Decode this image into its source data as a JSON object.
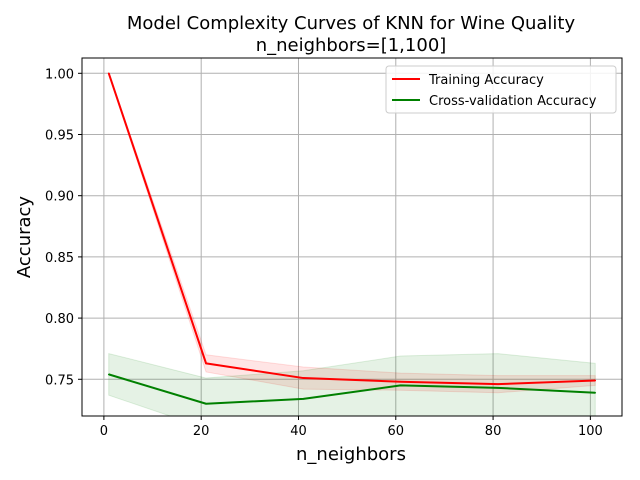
{
  "chart_data": {
    "type": "line",
    "title": "Model Complexity Curves of KNN for Wine Quality",
    "subtitle": "n_neighbors=[1,100]",
    "xlabel": "n_neighbors",
    "ylabel": "Accuracy",
    "xlim": [
      -4.5,
      106.5
    ],
    "ylim": [
      0.72,
      1.0125
    ],
    "xticks": [
      0,
      20,
      40,
      60,
      80,
      100
    ],
    "xtick_labels": [
      "0",
      "20",
      "40",
      "60",
      "80",
      "100"
    ],
    "yticks": [
      0.75,
      0.8,
      0.85,
      0.9,
      0.95,
      1.0
    ],
    "ytick_labels": [
      "0.75",
      "0.80",
      "0.85",
      "0.90",
      "0.95",
      "1.00"
    ],
    "grid": true,
    "legend_position": "top-right",
    "x": [
      1,
      21,
      41,
      61,
      81,
      101
    ],
    "series": [
      {
        "name": "Training Accuracy",
        "color": "#ff0000",
        "values": [
          1.0,
          0.763,
          0.751,
          0.748,
          0.746,
          0.749
        ],
        "band_lower": [
          0.9995,
          0.756,
          0.742,
          0.741,
          0.739,
          0.745
        ],
        "band_upper": [
          1.0005,
          0.77,
          0.76,
          0.755,
          0.753,
          0.753
        ]
      },
      {
        "name": "Cross-validation Accuracy",
        "color": "#008000",
        "values": [
          0.754,
          0.73,
          0.734,
          0.745,
          0.743,
          0.739
        ],
        "band_lower": [
          0.737,
          0.71,
          0.705,
          0.715,
          0.712,
          0.716
        ],
        "band_upper": [
          0.771,
          0.751,
          0.757,
          0.769,
          0.771,
          0.763
        ]
      }
    ]
  }
}
